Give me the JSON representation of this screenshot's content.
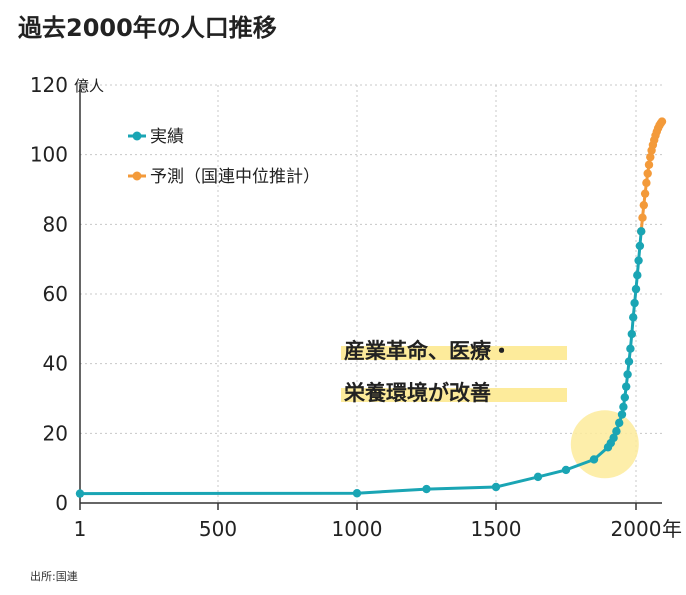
{
  "chart_data": {
    "type": "line",
    "title": "過去2000年の人口推移",
    "ylabel_unit": "億人",
    "xlabel_unit": "年",
    "x_ticks": [
      1,
      500,
      1000,
      1500,
      2000
    ],
    "x_tick_labels": [
      "1",
      "500",
      "1000",
      "1500",
      "2000"
    ],
    "y_ticks": [
      0,
      20,
      40,
      60,
      80,
      100,
      120
    ],
    "y_tick_labels": [
      "0",
      "20",
      "40",
      "60",
      "80",
      "100",
      "120"
    ],
    "xlim": [
      1,
      2100
    ],
    "ylim": [
      0,
      120
    ],
    "grid": true,
    "legend_position": "top-left",
    "series": [
      {
        "name": "実績",
        "color": "#1aa5b4",
        "points": [
          [
            1,
            2.7
          ],
          [
            1000,
            2.8
          ],
          [
            1250,
            4.0
          ],
          [
            1500,
            4.6
          ],
          [
            1650,
            7.5
          ],
          [
            1750,
            9.5
          ],
          [
            1850,
            12.5
          ],
          [
            1900,
            16.0
          ],
          [
            1910,
            17.2
          ],
          [
            1920,
            18.7
          ],
          [
            1930,
            20.6
          ],
          [
            1940,
            23.0
          ],
          [
            1950,
            25.4
          ],
          [
            1955,
            27.6
          ],
          [
            1960,
            30.3
          ],
          [
            1965,
            33.4
          ],
          [
            1970,
            36.9
          ],
          [
            1975,
            40.6
          ],
          [
            1980,
            44.3
          ],
          [
            1985,
            48.5
          ],
          [
            1990,
            53.3
          ],
          [
            1995,
            57.4
          ],
          [
            2000,
            61.4
          ],
          [
            2005,
            65.4
          ],
          [
            2010,
            69.6
          ],
          [
            2015,
            73.8
          ],
          [
            2020,
            78.0
          ]
        ]
      },
      {
        "name": "予測（国連中位推計）",
        "color": "#f39a3a",
        "points": [
          [
            2020,
            78.0
          ],
          [
            2025,
            81.9
          ],
          [
            2030,
            85.5
          ],
          [
            2035,
            88.8
          ],
          [
            2040,
            91.9
          ],
          [
            2045,
            94.6
          ],
          [
            2050,
            97.1
          ],
          [
            2055,
            99.3
          ],
          [
            2060,
            101.2
          ],
          [
            2065,
            102.8
          ],
          [
            2070,
            104.2
          ],
          [
            2075,
            105.5
          ],
          [
            2080,
            106.6
          ],
          [
            2085,
            107.6
          ],
          [
            2090,
            108.4
          ],
          [
            2095,
            109.0
          ],
          [
            2100,
            109.5
          ]
        ]
      }
    ],
    "annotations": [
      {
        "lines": [
          "産業革命、医療・",
          "栄養環境が改善"
        ],
        "highlight_color": "#fdeb9b",
        "circle_at": [
          1910,
          18
        ]
      }
    ],
    "source": "出所:国連"
  }
}
